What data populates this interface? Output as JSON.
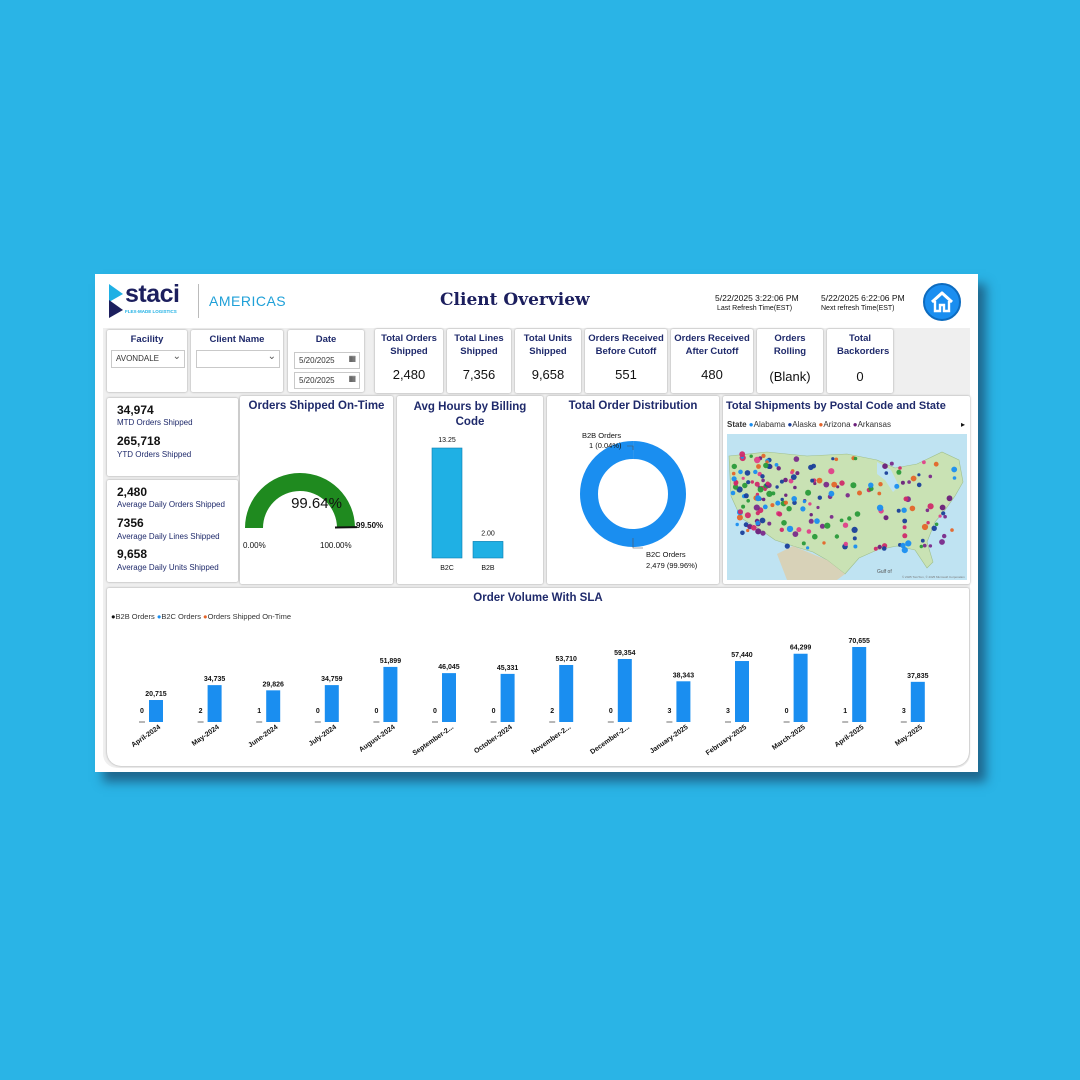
{
  "header": {
    "logo_word": "staci",
    "logo_tagline": "FLEX-MADE LOGISTICS",
    "region": "AMERICAS",
    "title": "Client Overview",
    "last_refresh": "5/22/2025 3:22:06 PM",
    "last_refresh_label": "Last Refresh Time(EST)",
    "next_refresh": "5/22/2025 6:22:06 PM",
    "next_refresh_label": "Next refresh Time(EST)"
  },
  "filters": {
    "facility_label": "Facility",
    "facility_value": "AVONDALE",
    "client_label": "Client Name",
    "client_value": "",
    "date_label": "Date",
    "date_from": "5/20/2025",
    "date_to": "5/20/2025"
  },
  "kpis": [
    {
      "label": "Total Orders Shipped",
      "value": "2,480"
    },
    {
      "label": "Total Lines Shipped",
      "value": "7,356"
    },
    {
      "label": "Total Units Shipped",
      "value": "9,658"
    },
    {
      "label": "Orders Received Before Cutoff",
      "value": "551"
    },
    {
      "label": "Orders Received After Cutoff",
      "value": "480"
    },
    {
      "label": "Orders Rolling",
      "value": "(Blank)"
    },
    {
      "label": "Total Backorders",
      "value": "0"
    }
  ],
  "summary_top": [
    {
      "value": "34,974",
      "label": "MTD Orders Shipped"
    },
    {
      "value": "265,718",
      "label": "YTD Orders Shipped"
    }
  ],
  "summary_bottom": [
    {
      "value": "2,480",
      "label": "Average Daily Orders Shipped"
    },
    {
      "value": "7356",
      "label": "Average Daily Lines Shipped"
    },
    {
      "value": "9,658",
      "label": "Average Daily Units Shipped"
    }
  ],
  "gauge": {
    "title": "Orders Shipped On-Time",
    "value_label": "99.64%",
    "value": 99.64,
    "target_label": "99.50%",
    "target": 99.5,
    "min_label": "0.00%",
    "max_label": "100.00%",
    "color": "#1f8a1f"
  },
  "billing": {
    "title": "Avg Hours by Billing Code",
    "color": "#1fb0e4"
  },
  "distribution": {
    "title": "Total Order Distribution",
    "b2b_label": "B2B Orders",
    "b2b_value": "1 (0.04%)",
    "b2c_label": "B2C Orders",
    "b2c_value": "2,479 (99.96%)",
    "color": "#1a8ef0"
  },
  "map": {
    "title": "Total Shipments by Postal Code and State",
    "legend_label": "State",
    "legend": [
      {
        "name": "Alabama",
        "color": "#1a8ef0"
      },
      {
        "name": "Alaska",
        "color": "#1a3f9a"
      },
      {
        "name": "Arizona",
        "color": "#e4652a"
      },
      {
        "name": "Arkansas",
        "color": "#6b1f7a"
      }
    ],
    "credit": "© 2025 TomTom, © 2025 Microsoft Corporation"
  },
  "volume": {
    "title": "Order Volume With SLA",
    "legend": [
      {
        "name": "B2B Orders",
        "color": "#111111"
      },
      {
        "name": "B2C Orders",
        "color": "#1a8ef0"
      },
      {
        "name": "Orders Shipped On-Time",
        "color": "#e4652a"
      }
    ]
  },
  "home_button_color": "#1a8ef0",
  "chart_data": [
    {
      "type": "bar",
      "title": "Avg Hours by Billing Code",
      "categories": [
        "B2C",
        "B2B"
      ],
      "values": [
        13.25,
        2.0
      ],
      "labels": [
        "13.25",
        "2.00"
      ]
    },
    {
      "type": "pie",
      "title": "Total Order Distribution",
      "categories": [
        "B2B Orders",
        "B2C Orders"
      ],
      "values": [
        1,
        2479
      ]
    },
    {
      "type": "bar",
      "title": "Order Volume With SLA",
      "categories": [
        "April-2024",
        "May-2024",
        "June-2024",
        "July-2024",
        "August-2024",
        "September-2...",
        "October-2024",
        "November-2...",
        "December-2...",
        "January-2025",
        "February-2025",
        "March-2025",
        "April-2025",
        "May-2025"
      ],
      "series": [
        {
          "name": "B2B Orders",
          "values": [
            0,
            2,
            1,
            0,
            0,
            0,
            0,
            2,
            0,
            3,
            3,
            0,
            1,
            3
          ],
          "labels": [
            "0",
            "2",
            "1",
            "0",
            "0",
            "0",
            "0",
            "2",
            "0",
            "3",
            "3",
            "0",
            "1",
            "3"
          ]
        },
        {
          "name": "B2C Orders",
          "values": [
            20715,
            34735,
            29826,
            34759,
            51899,
            46045,
            45331,
            53710,
            59354,
            38343,
            57440,
            64299,
            70655,
            37835
          ],
          "labels": [
            "20,715",
            "34,735",
            "29,826",
            "34,759",
            "51,899",
            "46,045",
            "45,331",
            "53,710",
            "59,354",
            "38,343",
            "57,440",
            "64,299",
            "70,655",
            "37,835"
          ]
        }
      ]
    }
  ]
}
